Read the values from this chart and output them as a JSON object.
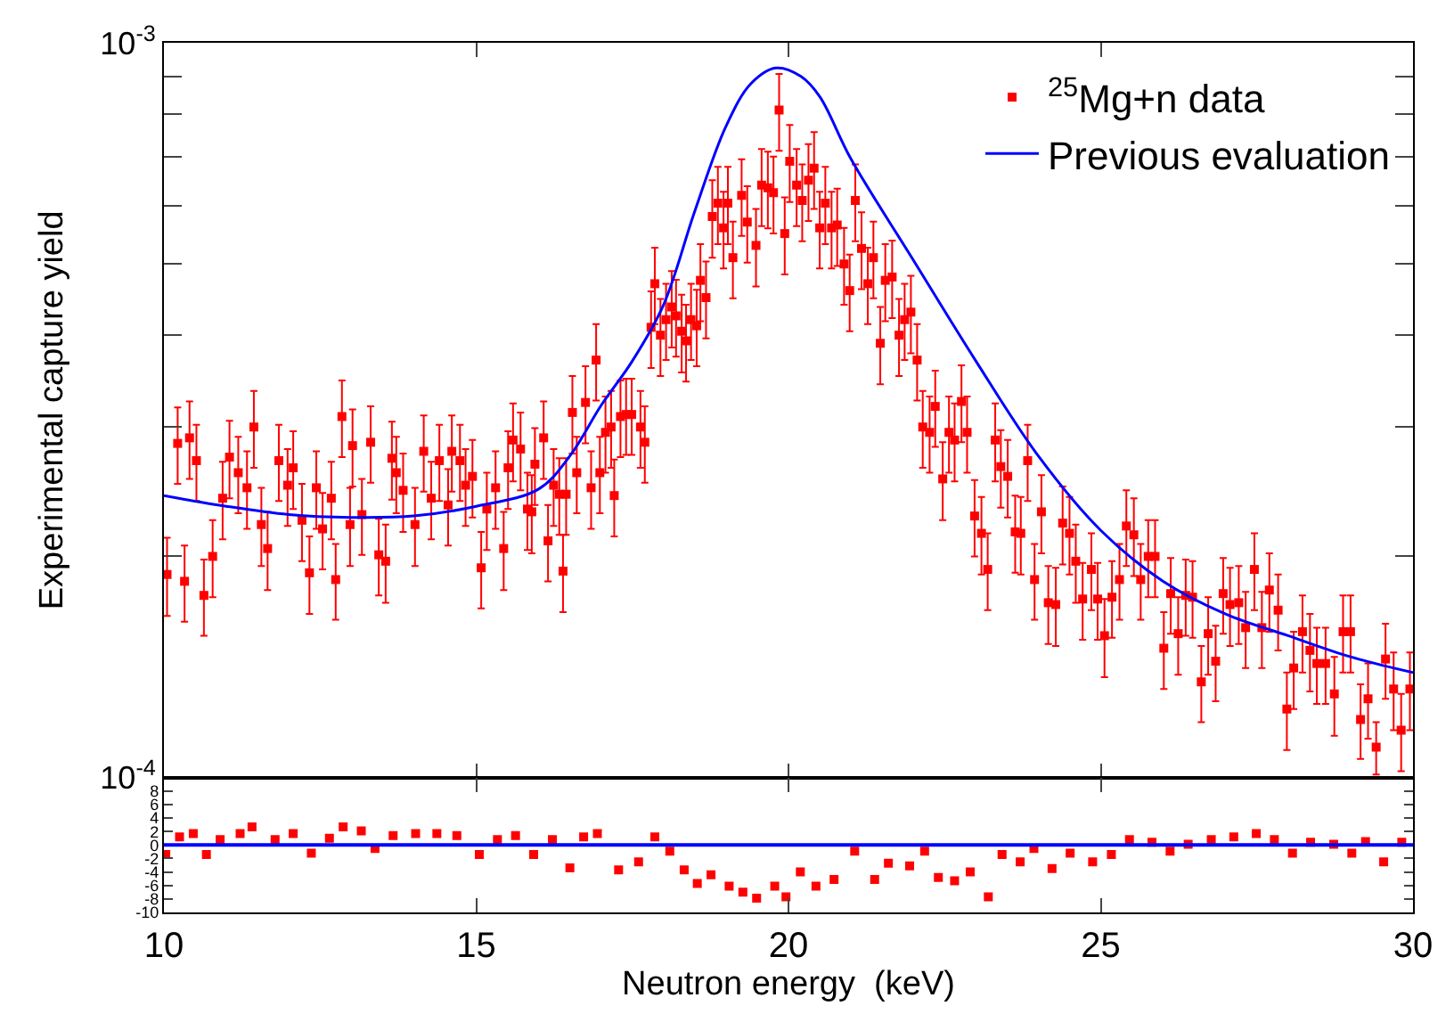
{
  "chart_data": [
    {
      "type": "scatter",
      "ylabel": "Experimental capture yield",
      "log": "y",
      "xlim": [
        10,
        30
      ],
      "xticks": [
        10,
        15,
        20,
        25,
        30
      ],
      "ylim": [
        0.0001,
        0.001
      ],
      "yticks": [
        {
          "value": 0.0001,
          "label": "10$^{-4}$"
        },
        {
          "value": 0.0002,
          "label": null
        },
        {
          "value": 0.0003,
          "label": null
        },
        {
          "value": 0.0004,
          "label": null
        },
        {
          "value": 0.0005,
          "label": null
        },
        {
          "value": 0.0006,
          "label": null
        },
        {
          "value": 0.0007,
          "label": null
        },
        {
          "value": 0.0008,
          "label": null
        },
        {
          "value": 0.0009,
          "label": null
        },
        {
          "value": 0.001,
          "label": "10$^{-3}$"
        }
      ],
      "tick_labels": "y",
      "legend": "top right",
      "series": [
        {
          "name": "$^{25}$Mg+n data",
          "type": "scatter",
          "marker": "square",
          "color": "#ff0000",
          "x": [
            10.05,
            10.22,
            10.33,
            10.41,
            10.52,
            10.64,
            10.78,
            10.94,
            11.05,
            11.19,
            11.33,
            11.44,
            11.56,
            11.66,
            11.84,
            11.98,
            12.07,
            12.21,
            12.33,
            12.44,
            12.54,
            12.68,
            12.75,
            12.85,
            12.98,
            13.02,
            13.17,
            13.31,
            13.44,
            13.55,
            13.65,
            13.72,
            13.83,
            14.02,
            14.16,
            14.28,
            14.41,
            14.55,
            14.61,
            14.74,
            14.83,
            14.94,
            15.08,
            15.17,
            15.31,
            15.44,
            15.51,
            15.59,
            15.71,
            15.82,
            15.89,
            15.94,
            16.08,
            16.15,
            16.24,
            16.33,
            16.39,
            16.44,
            16.54,
            16.61,
            16.75,
            16.84,
            16.92,
            16.98,
            17.07,
            17.16,
            17.21,
            17.31,
            17.4,
            17.49,
            17.63,
            17.7,
            17.8,
            17.86,
            17.95,
            18.04,
            18.13,
            18.2,
            18.29,
            18.36,
            18.44,
            18.53,
            18.59,
            18.68,
            18.78,
            18.87,
            18.96,
            19.03,
            19.11,
            19.25,
            19.34,
            19.48,
            19.57,
            19.67,
            19.76,
            19.85,
            19.94,
            20.02,
            20.13,
            20.22,
            20.32,
            20.41,
            20.5,
            20.59,
            20.69,
            20.78,
            20.89,
            20.98,
            21.07,
            21.17,
            21.27,
            21.36,
            21.47,
            21.55,
            21.66,
            21.77,
            21.86,
            21.96,
            22.06,
            22.15,
            22.26,
            22.35,
            22.47,
            22.57,
            22.66,
            22.77,
            22.86,
            22.98,
            23.09,
            23.19,
            23.31,
            23.4,
            23.51,
            23.63,
            23.72,
            23.83,
            23.94,
            24.05,
            24.16,
            24.28,
            24.39,
            24.5,
            24.6,
            24.71,
            24.85,
            24.95,
            25.06,
            25.18,
            25.3,
            25.41,
            25.53,
            25.64,
            25.76,
            25.87,
            26.01,
            26.12,
            26.24,
            26.36,
            26.47,
            26.61,
            26.72,
            26.84,
            26.96,
            27.07,
            27.21,
            27.32,
            27.46,
            27.58,
            27.7,
            27.84,
            27.98,
            28.09,
            28.23,
            28.35,
            28.46,
            28.6,
            28.74,
            28.88,
            29.0,
            29.16,
            29.28,
            29.41,
            29.56,
            29.69,
            29.81,
            29.95
          ],
          "values": [
            0.000189,
            0.000285,
            0.000185,
            0.00029,
            0.00027,
            0.000177,
            0.0002,
            0.00024,
            0.000273,
            0.00026,
            0.000248,
            0.0003,
            0.000221,
            0.000205,
            0.00027,
            0.00025,
            0.000264,
            0.000224,
            0.00019,
            0.000248,
            0.000218,
            0.00024,
            0.000186,
            0.00031,
            0.000221,
            0.000283,
            0.000228,
            0.000286,
            0.000201,
            0.000197,
            0.000272,
            0.00026,
            0.000246,
            0.000221,
            0.000278,
            0.00024,
            0.00027,
            0.000235,
            0.000278,
            0.00027,
            0.00025,
            0.000257,
            0.000193,
            0.000232,
            0.000248,
            0.000205,
            0.000264,
            0.000288,
            0.00028,
            0.000232,
            0.00023,
            0.000267,
            0.00029,
            0.00021,
            0.00025,
            0.000243,
            0.000191,
            0.000243,
            0.000314,
            0.00026,
            0.000324,
            0.000248,
            0.00037,
            0.00026,
            0.000295,
            0.0003,
            0.000242,
            0.00031,
            0.000312,
            0.000312,
            0.0003,
            0.000286,
            0.00041,
            0.00047,
            0.0004,
            0.00042,
            0.000437,
            0.000425,
            0.000405,
            0.000393,
            0.00042,
            0.000412,
            0.000475,
            0.00045,
            0.00058,
            0.000605,
            0.00056,
            0.000605,
            0.00051,
            0.00062,
            0.00057,
            0.00053,
            0.00064,
            0.000635,
            0.000625,
            0.00081,
            0.00055,
            0.00069,
            0.00064,
            0.00061,
            0.00065,
            0.000675,
            0.00056,
            0.000605,
            0.00056,
            0.000565,
            0.0005,
            0.00046,
            0.00061,
            0.000525,
            0.00047,
            0.00051,
            0.00039,
            0.000475,
            0.00048,
            0.0004,
            0.00042,
            0.00043,
            0.00037,
            0.0003,
            0.000295,
            0.00032,
            0.000255,
            0.000295,
            0.000288,
            0.000325,
            0.000295,
            0.000227,
            0.000215,
            0.000192,
            0.000288,
            0.000265,
            0.000257,
            0.000216,
            0.000215,
            0.00027,
            0.000186,
            0.00023,
            0.000173,
            0.000172,
            0.000222,
            0.000215,
            0.000197,
            0.000175,
            0.000192,
            0.000175,
            0.000156,
            0.000176,
            0.000186,
            0.00022,
            0.000214,
            0.000186,
            0.0002,
            0.0002,
            0.00015,
            0.000178,
            0.000157,
            0.000177,
            0.000176,
            0.000135,
            0.000157,
            0.000144,
            0.000178,
            0.000172,
            0.000173,
            0.00016,
            0.000192,
            0.00016,
            0.00018,
            0.000169,
            0.000124,
            0.000141,
            0.000158,
            0.000149,
            0.000143,
            0.000143,
            0.00013,
            0.000158,
            0.000158,
            0.00012,
            0.000128,
            0.00011,
            0.000145,
            0.000132,
            0.000116,
            0.000132
          ],
          "errors": [
            2.3e-05,
            3.4e-05,
            2.2e-05,
            3.5e-05,
            3.2e-05,
            2.1e-05,
            2.4e-05,
            2.9e-05,
            3.3e-05,
            3.1e-05,
            3e-05,
            3.6e-05,
            2.7e-05,
            2.5e-05,
            3.2e-05,
            3e-05,
            3.2e-05,
            2.7e-05,
            2.3e-05,
            3e-05,
            2.6e-05,
            2.9e-05,
            2.2e-05,
            3.7e-05,
            2.7e-05,
            3.4e-05,
            2.7e-05,
            3.4e-05,
            2.4e-05,
            2.4e-05,
            3.3e-05,
            3.1e-05,
            3e-05,
            2.7e-05,
            3.3e-05,
            2.9e-05,
            3.2e-05,
            2.8e-05,
            3.3e-05,
            3.2e-05,
            3e-05,
            3.1e-05,
            2.3e-05,
            2.8e-05,
            3e-05,
            2.5e-05,
            3.2e-05,
            3.5e-05,
            3.4e-05,
            2.8e-05,
            2.8e-05,
            3.2e-05,
            3.5e-05,
            2.5e-05,
            3e-05,
            2.9e-05,
            2.3e-05,
            2.9e-05,
            3.8e-05,
            3.1e-05,
            3.9e-05,
            3e-05,
            4.4e-05,
            3.1e-05,
            3.5e-05,
            3.6e-05,
            2.9e-05,
            3.7e-05,
            3.7e-05,
            3.7e-05,
            3.6e-05,
            3.4e-05,
            4.9e-05,
            5.6e-05,
            4.8e-05,
            5e-05,
            5.2e-05,
            5.1e-05,
            4.9e-05,
            4.7e-05,
            5e-05,
            4.9e-05,
            5.7e-05,
            5.4e-05,
            7e-05,
            7.3e-05,
            6.7e-05,
            7.3e-05,
            6.1e-05,
            7.4e-05,
            6.8e-05,
            6.4e-05,
            7.7e-05,
            7.6e-05,
            7.5e-05,
            9.7e-05,
            6.6e-05,
            8.3e-05,
            7.7e-05,
            7.3e-05,
            7.8e-05,
            8.1e-05,
            6.7e-05,
            7.3e-05,
            6.7e-05,
            6.8e-05,
            6e-05,
            5.5e-05,
            7.3e-05,
            6.3e-05,
            5.6e-05,
            6.1e-05,
            4.7e-05,
            5.7e-05,
            5.8e-05,
            4.8e-05,
            5e-05,
            5.2e-05,
            4.4e-05,
            3.6e-05,
            3.5e-05,
            3.8e-05,
            3.1e-05,
            3.5e-05,
            3.5e-05,
            3.9e-05,
            3.5e-05,
            2.7e-05,
            2.6e-05,
            2.3e-05,
            3.5e-05,
            3.2e-05,
            3.1e-05,
            2.6e-05,
            2.6e-05,
            3.2e-05,
            2.2e-05,
            2.8e-05,
            2.1e-05,
            2.1e-05,
            2.7e-05,
            2.6e-05,
            2.4e-05,
            2.1e-05,
            2.3e-05,
            2.1e-05,
            1.9e-05,
            2.1e-05,
            2.2e-05,
            2.6e-05,
            2.6e-05,
            2.2e-05,
            2.4e-05,
            2.4e-05,
            1.8e-05,
            2.1e-05,
            1.9e-05,
            2.1e-05,
            2.1e-05,
            1.6e-05,
            1.9e-05,
            1.7e-05,
            2.1e-05,
            2.1e-05,
            2.1e-05,
            1.9e-05,
            2.3e-05,
            1.9e-05,
            2.2e-05,
            2e-05,
            1.5e-05,
            1.7e-05,
            1.9e-05,
            1.8e-05,
            1.7e-05,
            1.7e-05,
            1.6e-05,
            1.9e-05,
            1.9e-05,
            1.4e-05,
            1.5e-05,
            9e-06,
            1.7e-05,
            1.6e-05,
            1.4e-05,
            1.6e-05
          ]
        },
        {
          "name": "Previous evaluation",
          "type": "line",
          "marker": "none",
          "color": "#0000ff",
          "x": [
            10,
            11,
            12,
            13,
            14,
            15,
            16,
            16.5,
            17,
            17.5,
            18,
            18.5,
            19,
            19.4,
            19.8,
            20.2,
            20.5,
            21,
            22,
            23,
            24,
            25,
            26,
            27,
            28,
            29,
            30
          ],
          "values": [
            0.000242,
            0.000234,
            0.000228,
            0.000226,
            0.000227,
            0.000234,
            0.000247,
            0.000274,
            0.000321,
            0.000369,
            0.00044,
            0.00059,
            0.00077,
            0.00088,
            0.000924,
            0.0009,
            0.000845,
            0.000695,
            0.000506,
            0.000369,
            0.000274,
            0.000217,
            0.000185,
            0.000167,
            0.000156,
            0.000146,
            0.000139
          ]
        }
      ]
    },
    {
      "type": "scatter",
      "xlabel": "Neutron energy  (keV)",
      "xlim": [
        10,
        30
      ],
      "xticks": [
        10,
        15,
        20,
        25,
        30
      ],
      "ylim": [
        -10,
        10
      ],
      "yticks": [
        -10,
        -8,
        -6,
        -4,
        -2,
        0,
        2,
        4,
        6,
        8
      ],
      "marker": "square",
      "ref_lines": [
        {
          "axis": "y",
          "value": 0,
          "color": "#0000ff"
        }
      ],
      "series": [
        {
          "color": "#ff0000",
          "x": [
            10.03,
            10.25,
            10.47,
            10.68,
            10.9,
            11.22,
            11.41,
            11.78,
            12.07,
            12.36,
            12.65,
            12.87,
            13.16,
            13.38,
            13.67,
            14.03,
            14.37,
            14.69,
            15.05,
            15.34,
            15.63,
            15.92,
            16.22,
            16.5,
            16.72,
            16.94,
            17.28,
            17.6,
            17.86,
            18.1,
            18.33,
            18.54,
            18.76,
            19.05,
            19.27,
            19.49,
            19.78,
            19.96,
            20.19,
            20.44,
            20.73,
            21.06,
            21.38,
            21.6,
            21.94,
            22.18,
            22.4,
            22.66,
            22.91,
            23.2,
            23.42,
            23.71,
            23.93,
            24.22,
            24.51,
            24.87,
            25.17,
            25.46,
            25.82,
            26.11,
            26.4,
            26.77,
            27.13,
            27.49,
            27.78,
            28.07,
            28.36,
            28.73,
            29.02,
            29.24,
            29.53,
            29.82
          ],
          "values": [
            -1.4,
            1.2,
            1.7,
            -1.4,
            0.8,
            1.7,
            2.7,
            0.8,
            1.7,
            -1.2,
            1.0,
            2.7,
            2.1,
            -0.5,
            1.4,
            1.7,
            1.7,
            1.4,
            -1.4,
            0.8,
            1.4,
            -1.4,
            0.8,
            -3.4,
            1.2,
            1.7,
            -3.7,
            -2.5,
            1.2,
            -0.9,
            -3.7,
            -5.7,
            -4.4,
            -6.1,
            -7.0,
            -7.9,
            -6.1,
            -7.7,
            -4.0,
            -6.1,
            -5.1,
            -0.9,
            -5.1,
            -2.7,
            -3.1,
            -0.9,
            -4.8,
            -5.3,
            -4.0,
            -7.7,
            -1.4,
            -2.5,
            -0.5,
            -3.5,
            -1.2,
            -2.5,
            -1.4,
            0.8,
            0.4,
            -0.9,
            0.1,
            0.8,
            1.2,
            1.7,
            0.8,
            -1.2,
            0.4,
            0.1,
            -1.2,
            0.5,
            -2.5,
            0.4
          ]
        }
      ]
    }
  ]
}
